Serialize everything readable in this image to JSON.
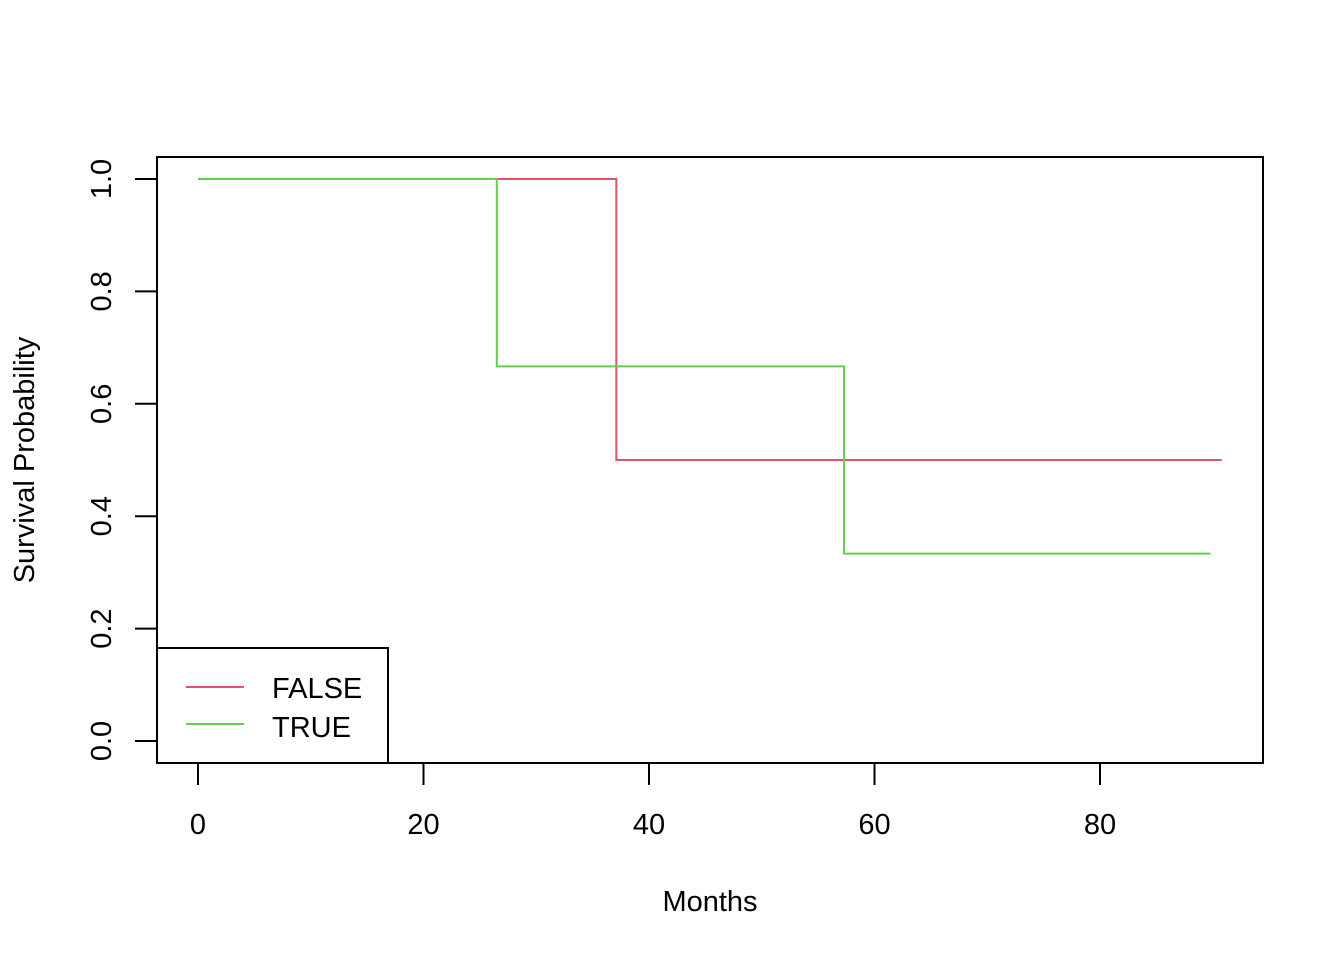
{
  "chart_data": {
    "type": "line",
    "step": true,
    "title": "",
    "xlabel": "Months",
    "ylabel": "Survival Probability",
    "xlim": [
      0,
      91
    ],
    "ylim": [
      0,
      1
    ],
    "x_ticks": [
      0,
      20,
      40,
      60,
      80
    ],
    "y_ticks": [
      0.0,
      0.2,
      0.4,
      0.6,
      0.8,
      1.0
    ],
    "x_tick_labels": [
      "0",
      "20",
      "40",
      "60",
      "80"
    ],
    "y_tick_labels": [
      "0.0",
      "0.2",
      "0.4",
      "0.6",
      "0.8",
      "1.0"
    ],
    "grid": false,
    "legend": {
      "position": "bottom-left",
      "entries": [
        "FALSE",
        "TRUE"
      ]
    },
    "series": [
      {
        "name": "FALSE",
        "color": "#DF536B",
        "x": [
          0,
          37.1,
          90.8
        ],
        "y": [
          1.0,
          0.5,
          0.5
        ]
      },
      {
        "name": "TRUE",
        "color": "#61D04F",
        "x": [
          0,
          26.5,
          57.3,
          89.8
        ],
        "y": [
          1.0,
          0.6667,
          0.3333,
          0.3333
        ]
      }
    ]
  }
}
